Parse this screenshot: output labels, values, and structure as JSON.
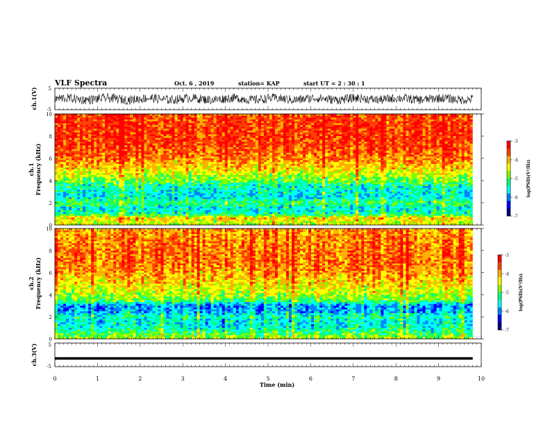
{
  "header": {
    "title": "VLF Spectra",
    "date": "Oct. 6  , 2019",
    "station": "station= KAP",
    "start_ut": "start  UT  =   2  : 30 : 1"
  },
  "chart_data": [
    {
      "id": "ch1_waveform",
      "type": "line",
      "ylabel": "ch.1(V)",
      "ylim": [
        -5,
        5
      ],
      "ytick_labels": [
        "5",
        "-5"
      ],
      "xlim": [
        0,
        10
      ],
      "x_end": 9.8,
      "description_values": {
        "center": 0,
        "amplitude_min": -2.5,
        "amplitude_max": 2.5
      },
      "color": "#000000"
    },
    {
      "id": "ch1_spectrogram",
      "type": "heatmap",
      "ylabel": "ch.1\nFrequency (kHz)",
      "ylabel_lines": [
        "ch.1",
        "Frequency  (kHz)"
      ],
      "ylim": [
        0,
        10
      ],
      "yticks": [
        0,
        2,
        4,
        6,
        8,
        10
      ],
      "ytick_labels": [
        "0",
        "2",
        "4",
        "6",
        "8",
        "10"
      ],
      "xlim": [
        0,
        10
      ],
      "x_end": 9.8,
      "colorbar": {
        "label": "log(PSD)(V²/Hz)",
        "range": [
          -7,
          -3
        ],
        "ticks": [
          -3,
          -4,
          -5,
          -6,
          -7
        ],
        "tick_labels": [
          "-3",
          "-4",
          "-5",
          "-6",
          "-7"
        ]
      },
      "frequency_profile_log_psd": [
        {
          "f": 0.2,
          "v": -4.6
        },
        {
          "f": 0.6,
          "v": -4.2
        },
        {
          "f": 1.0,
          "v": -5.3
        },
        {
          "f": 1.5,
          "v": -5.6
        },
        {
          "f": 2.0,
          "v": -5.1
        },
        {
          "f": 2.5,
          "v": -5.6
        },
        {
          "f": 3.0,
          "v": -5.5
        },
        {
          "f": 3.5,
          "v": -5.4
        },
        {
          "f": 4.0,
          "v": -4.9
        },
        {
          "f": 4.5,
          "v": -4.6
        },
        {
          "f": 5.0,
          "v": -4.3
        },
        {
          "f": 6.0,
          "v": -3.8
        },
        {
          "f": 7.0,
          "v": -3.6
        },
        {
          "f": 8.0,
          "v": -3.5
        },
        {
          "f": 9.0,
          "v": -3.5
        },
        {
          "f": 10.0,
          "v": -3.6
        }
      ]
    },
    {
      "id": "ch2_spectrogram",
      "type": "heatmap",
      "ylabel": "ch.2\nFrequency (kHz)",
      "ylabel_lines": [
        "ch.2",
        "Frequency  (kHz)"
      ],
      "ylim": [
        0,
        10
      ],
      "yticks": [
        0,
        2,
        4,
        6,
        8,
        10
      ],
      "ytick_labels": [
        "0",
        "2",
        "4",
        "6",
        "8",
        "10"
      ],
      "xlim": [
        0,
        10
      ],
      "x_end": 9.8,
      "colorbar": {
        "label": "log(PSD)(V²/Hz)",
        "range": [
          -7,
          -3
        ],
        "ticks": [
          -3,
          -4,
          -5,
          -6,
          -7
        ],
        "tick_labels": [
          "-3",
          "-4",
          "-5",
          "-6",
          "-7"
        ]
      },
      "frequency_profile_log_psd": [
        {
          "f": 0.2,
          "v": -4.8
        },
        {
          "f": 0.6,
          "v": -5.2
        },
        {
          "f": 1.0,
          "v": -5.5
        },
        {
          "f": 1.5,
          "v": -5.6
        },
        {
          "f": 2.0,
          "v": -5.4
        },
        {
          "f": 2.5,
          "v": -5.9
        },
        {
          "f": 3.0,
          "v": -6.0
        },
        {
          "f": 3.5,
          "v": -5.0
        },
        {
          "f": 4.0,
          "v": -4.7
        },
        {
          "f": 4.5,
          "v": -4.5
        },
        {
          "f": 5.0,
          "v": -4.3
        },
        {
          "f": 6.0,
          "v": -4.0
        },
        {
          "f": 7.0,
          "v": -3.8
        },
        {
          "f": 8.0,
          "v": -3.8
        },
        {
          "f": 9.0,
          "v": -3.9
        },
        {
          "f": 10.0,
          "v": -4.0
        }
      ]
    },
    {
      "id": "ch3_waveform",
      "type": "line",
      "ylabel": "ch.3(V)",
      "ylim": [
        -5,
        5
      ],
      "ytick_labels": [
        "5",
        "-5"
      ],
      "xlim": [
        0,
        10
      ],
      "x_end": 9.8,
      "description_values": {
        "center": -1.5,
        "amplitude_min": -1.7,
        "amplitude_max": -1.3
      },
      "color": "#000000"
    }
  ],
  "x_axis": {
    "label": "Time  (min)",
    "ticks": [
      0,
      1,
      2,
      3,
      4,
      5,
      6,
      7,
      8,
      9,
      10
    ],
    "tick_labels": [
      "0",
      "1",
      "2",
      "3",
      "4",
      "5",
      "6",
      "7",
      "8",
      "9",
      "10"
    ]
  },
  "colormap": [
    "#000080",
    "#0000ff",
    "#0080ff",
    "#00ffff",
    "#00ff80",
    "#80ff00",
    "#ffff00",
    "#ffb000",
    "#ff4000",
    "#ff0000",
    "#ffffff"
  ]
}
